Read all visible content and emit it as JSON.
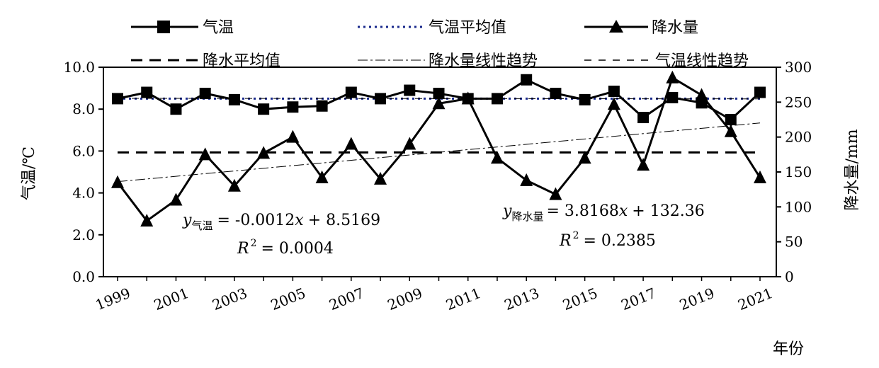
{
  "chart_data": {
    "type": "line",
    "x": [
      1999,
      2000,
      2001,
      2002,
      2003,
      2004,
      2005,
      2006,
      2007,
      2008,
      2009,
      2010,
      2011,
      2012,
      2013,
      2014,
      2015,
      2016,
      2017,
      2018,
      2019,
      2020,
      2021
    ],
    "x_ticks": [
      "1999",
      "2001",
      "2003",
      "2005",
      "2007",
      "2009",
      "2011",
      "2013",
      "2015",
      "2017",
      "2019",
      "2021"
    ],
    "xlabel": "年份",
    "ylabel_left": "气温/℃",
    "ylabel_right": "降水量/mm",
    "ylim_left": [
      0,
      10
    ],
    "ylim_right": [
      0,
      300
    ],
    "y_ticks_left": [
      "0.0",
      "2.0",
      "4.0",
      "6.0",
      "8.0",
      "10.0"
    ],
    "y_ticks_right": [
      "0",
      "50",
      "100",
      "150",
      "200",
      "250",
      "300"
    ],
    "series": [
      {
        "name": "气温",
        "axis": "left",
        "marker": "square",
        "color": "#000000",
        "values": [
          8.5,
          8.8,
          8.0,
          8.75,
          8.45,
          8.0,
          8.1,
          8.15,
          8.8,
          8.5,
          8.9,
          8.75,
          8.5,
          8.5,
          9.4,
          8.75,
          8.45,
          8.85,
          7.6,
          8.55,
          8.3,
          7.5,
          8.8
        ]
      },
      {
        "name": "降水量",
        "axis": "right",
        "marker": "triangle",
        "color": "#000000",
        "values": [
          135,
          80,
          110,
          175,
          130,
          177,
          200,
          142,
          190,
          140,
          190,
          248,
          255,
          170,
          138,
          118,
          170,
          247,
          160,
          285,
          260,
          208,
          142
        ]
      }
    ],
    "reference_lines": [
      {
        "name": "气温平均值",
        "axis": "left",
        "value": 8.5,
        "style": "dotted",
        "color": "#1a2a8c"
      },
      {
        "name": "降水平均值",
        "axis": "right",
        "value": 178,
        "style": "dashed",
        "color": "#000000"
      }
    ],
    "trendlines": [
      {
        "name": "降水量线性趋势",
        "axis": "right",
        "slope": 3.8168,
        "intercept": 132.36,
        "equation_label": "降水量",
        "equation_value": "= 3.8168",
        "equation_tail": "+ 132.36",
        "r2": "= 0.2385"
      },
      {
        "name": "气温线性趋势",
        "axis": "left",
        "slope": -0.0012,
        "intercept": 8.5169,
        "equation_label": "气温",
        "equation_value": "= -0.0012",
        "equation_tail": "+ 8.5169",
        "r2": "= 0.0004"
      }
    ],
    "legend": [
      "气温",
      "气温平均值",
      "降水量",
      "降水平均值",
      "降水量线性趋势",
      "气温线性趋势"
    ],
    "grid": false,
    "legend_position": "top"
  }
}
